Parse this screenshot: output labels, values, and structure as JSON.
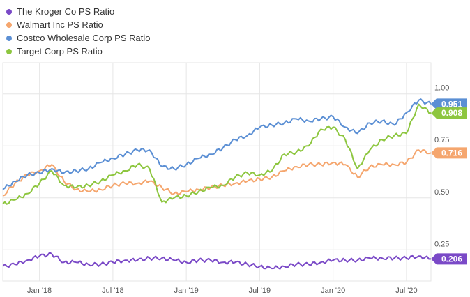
{
  "chart_data": {
    "type": "line",
    "title": "",
    "xlabel": "",
    "ylabel": "",
    "x_ticks": [
      "Jan '18",
      "Jul '18",
      "Jan '19",
      "Jul '19",
      "Jan '20",
      "Jul '20"
    ],
    "y_ticks": [
      "0.25",
      "0.50",
      "0.75",
      "1.00"
    ],
    "ylim": [
      0.1,
      1.15
    ],
    "grid": true,
    "legend_position": "top-left",
    "x_dates": [
      "Oct '17",
      "Nov '17",
      "Dec '17",
      "Jan '18",
      "Feb '18",
      "Mar '18",
      "Apr '18",
      "May '18",
      "Jun '18",
      "Jul '18",
      "Aug '18",
      "Sep '18",
      "Oct '18",
      "Nov '18",
      "Dec '18",
      "Jan '19",
      "Feb '19",
      "Mar '19",
      "Apr '19",
      "May '19",
      "Jun '19",
      "Jul '19",
      "Aug '19",
      "Sep '19",
      "Oct '19",
      "Nov '19",
      "Dec '19",
      "Jan '20",
      "Feb '20",
      "Mar '20",
      "Apr '20",
      "May '20",
      "Jun '20",
      "Jul '20",
      "Aug '20",
      "Sep '20"
    ],
    "series": [
      {
        "name": "The Kroger Co PS Ratio",
        "color": "#7a49c7",
        "end_label": "0.206",
        "values": [
          0.17,
          0.18,
          0.2,
          0.22,
          0.23,
          0.19,
          0.19,
          0.18,
          0.18,
          0.19,
          0.2,
          0.2,
          0.21,
          0.21,
          0.2,
          0.19,
          0.2,
          0.2,
          0.19,
          0.19,
          0.18,
          0.17,
          0.16,
          0.17,
          0.18,
          0.18,
          0.19,
          0.2,
          0.2,
          0.2,
          0.21,
          0.21,
          0.21,
          0.21,
          0.22,
          0.206
        ]
      },
      {
        "name": "Walmart Inc PS Ratio",
        "color": "#f5a66e",
        "end_label": "0.716",
        "values": [
          0.51,
          0.57,
          0.61,
          0.63,
          0.66,
          0.58,
          0.54,
          0.53,
          0.54,
          0.56,
          0.57,
          0.57,
          0.58,
          0.55,
          0.52,
          0.53,
          0.54,
          0.55,
          0.56,
          0.57,
          0.58,
          0.59,
          0.6,
          0.63,
          0.65,
          0.66,
          0.66,
          0.67,
          0.66,
          0.6,
          0.65,
          0.66,
          0.66,
          0.67,
          0.73,
          0.716
        ]
      },
      {
        "name": "Costco Wholesale Corp PS Ratio",
        "color": "#5b8fd4",
        "end_label": "0.951",
        "values": [
          0.54,
          0.58,
          0.61,
          0.62,
          0.64,
          0.62,
          0.63,
          0.64,
          0.67,
          0.69,
          0.71,
          0.73,
          0.73,
          0.65,
          0.64,
          0.66,
          0.69,
          0.71,
          0.74,
          0.78,
          0.8,
          0.84,
          0.85,
          0.86,
          0.88,
          0.87,
          0.88,
          0.89,
          0.84,
          0.81,
          0.86,
          0.87,
          0.85,
          0.91,
          0.97,
          0.951
        ]
      },
      {
        "name": "Target Corp PS Ratio",
        "color": "#8dc63f",
        "end_label": "0.908",
        "values": [
          0.47,
          0.49,
          0.52,
          0.57,
          0.63,
          0.56,
          0.55,
          0.56,
          0.58,
          0.61,
          0.63,
          0.66,
          0.64,
          0.48,
          0.5,
          0.51,
          0.53,
          0.55,
          0.56,
          0.6,
          0.62,
          0.61,
          0.63,
          0.71,
          0.72,
          0.75,
          0.83,
          0.84,
          0.78,
          0.64,
          0.73,
          0.78,
          0.8,
          0.81,
          0.95,
          0.908
        ]
      }
    ]
  }
}
